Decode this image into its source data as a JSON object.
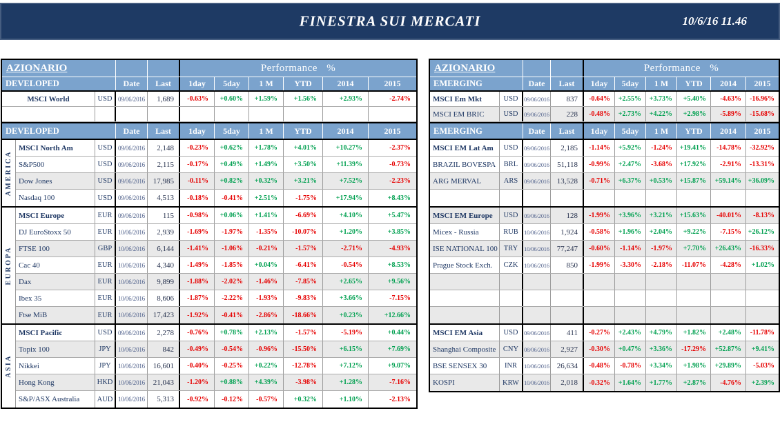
{
  "colors": {
    "banner_bg": "#1E3A64",
    "header_bg": "#7BA3CD",
    "navy_text": "#1F3864",
    "date_text": "#51628C",
    "last_text": "#28334F",
    "positive": "#00A050",
    "negative": "#E60000",
    "row_shade": "#E9E9E9",
    "grid_line": "#9A9A9A",
    "page_bg": "#FFFFFF"
  },
  "banner": {
    "title": "FINESTRA SUI MERCATI",
    "datetime": "10/6/16 11.46"
  },
  "columns": {
    "perf_title": "Performance %",
    "date": "Date",
    "last": "Last",
    "perf": [
      "1day",
      "5day",
      "1 M",
      "YTD",
      "2014",
      "2015"
    ]
  },
  "tables": [
    {
      "id": "developed",
      "side": "left",
      "title": "AZIONARIO",
      "section_label": "DEVELOPED",
      "has_label_col": true,
      "top_rows": [
        {
          "name": "MSCI World",
          "ccy": "USD",
          "date": "09/06/2016",
          "last": "1,689",
          "perf": [
            "-0.63%",
            "+0.60%",
            "+1.59%",
            "+1.56%",
            "+2.93%",
            "-2.74%"
          ],
          "bold": true,
          "center_name": true
        },
        {
          "empty": true
        }
      ],
      "groups": [
        {
          "label": "AMERICA",
          "rows": [
            {
              "name": "MSCI North Am",
              "ccy": "USD",
              "date": "09/06/2016",
              "last": "2,148",
              "perf": [
                "-0.23%",
                "+0.62%",
                "+1.78%",
                "+4.01%",
                "+10.27%",
                "-2.37%"
              ],
              "bold": true
            },
            {
              "name": "S&P500",
              "ccy": "USD",
              "date": "09/06/2016",
              "last": "2,115",
              "perf": [
                "-0.17%",
                "+0.49%",
                "+1.49%",
                "+3.50%",
                "+11.39%",
                "-0.73%"
              ]
            },
            {
              "name": "Dow Jones",
              "ccy": "USD",
              "date": "09/06/2016",
              "last": "17,985",
              "perf": [
                "-0.11%",
                "+0.82%",
                "+0.32%",
                "+3.21%",
                "+7.52%",
                "-2.23%"
              ],
              "shade": true
            },
            {
              "name": "Nasdaq 100",
              "ccy": "USD",
              "date": "09/06/2016",
              "last": "4,513",
              "perf": [
                "-0.18%",
                "-0.41%",
                "+2.51%",
                "-1.75%",
                "+17.94%",
                "+8.43%"
              ]
            }
          ]
        },
        {
          "label": "EUROPA",
          "rows": [
            {
              "name": "MSCI Europe",
              "ccy": "EUR",
              "date": "09/06/2016",
              "last": "115",
              "perf": [
                "-0.98%",
                "+0.06%",
                "+1.41%",
                "-6.69%",
                "+4.10%",
                "+5.47%"
              ],
              "bold": true
            },
            {
              "name": "DJ EuroStoxx 50",
              "ccy": "EUR",
              "date": "10/06/2016",
              "last": "2,939",
              "perf": [
                "-1.69%",
                "-1.97%",
                "-1.35%",
                "-10.07%",
                "+1.20%",
                "+3.85%"
              ]
            },
            {
              "name": "FTSE 100",
              "ccy": "GBP",
              "date": "10/06/2016",
              "last": "6,144",
              "perf": [
                "-1.41%",
                "-1.06%",
                "-0.21%",
                "-1.57%",
                "-2.71%",
                "-4.93%"
              ],
              "shade": true
            },
            {
              "name": "Cac 40",
              "ccy": "EUR",
              "date": "10/06/2016",
              "last": "4,340",
              "perf": [
                "-1.49%",
                "-1.85%",
                "+0.04%",
                "-6.41%",
                "-0.54%",
                "+8.53%"
              ]
            },
            {
              "name": "Dax",
              "ccy": "EUR",
              "date": "10/06/2016",
              "last": "9,899",
              "perf": [
                "-1.88%",
                "-2.02%",
                "-1.46%",
                "-7.85%",
                "+2.65%",
                "+9.56%"
              ],
              "shade": true
            },
            {
              "name": "Ibex 35",
              "ccy": "EUR",
              "date": "10/06/2016",
              "last": "8,606",
              "perf": [
                "-1.87%",
                "-2.22%",
                "-1.93%",
                "-9.83%",
                "+3.66%",
                "-7.15%"
              ]
            },
            {
              "name": "Ftse MiB",
              "ccy": "EUR",
              "date": "10/06/2016",
              "last": "17,423",
              "perf": [
                "-1.92%",
                "-0.41%",
                "-2.86%",
                "-18.66%",
                "+0.23%",
                "+12.66%"
              ],
              "shade": true
            }
          ]
        },
        {
          "label": "ASIA",
          "rows": [
            {
              "name": "MSCI Pacific",
              "ccy": "USD",
              "date": "09/06/2016",
              "last": "2,278",
              "perf": [
                "-0.76%",
                "+0.78%",
                "+2.13%",
                "-1.57%",
                "-5.19%",
                "+0.44%"
              ],
              "bold": true
            },
            {
              "name": "Topix 100",
              "ccy": "JPY",
              "date": "10/06/2016",
              "last": "842",
              "perf": [
                "-0.49%",
                "-0.54%",
                "-0.96%",
                "-15.50%",
                "+6.15%",
                "+7.69%"
              ],
              "shade": true
            },
            {
              "name": "Nikkei",
              "ccy": "JPY",
              "date": "10/06/2016",
              "last": "16,601",
              "perf": [
                "-0.40%",
                "-0.25%",
                "+0.22%",
                "-12.78%",
                "+7.12%",
                "+9.07%"
              ]
            },
            {
              "name": "Hong Kong",
              "ccy": "HKD",
              "date": "10/06/2016",
              "last": "21,043",
              "perf": [
                "-1.20%",
                "+0.88%",
                "+4.39%",
                "-3.98%",
                "+1.28%",
                "-7.16%"
              ],
              "shade": true
            },
            {
              "name": "S&P/ASX Australia",
              "ccy": "AUD",
              "date": "10/06/2016",
              "last": "5,313",
              "perf": [
                "-0.92%",
                "-0.12%",
                "-0.57%",
                "+0.32%",
                "+1.10%",
                "-2.13%"
              ]
            }
          ]
        }
      ]
    },
    {
      "id": "emerging",
      "side": "right",
      "title": "AZIONARIO",
      "section_label": "EMERGING",
      "has_label_col": false,
      "top_rows": [
        {
          "name": "MSCI Em Mkt",
          "ccy": "USD",
          "date": "09/06/2016",
          "last": "837",
          "perf": [
            "-0.64%",
            "+2.55%",
            "+3.73%",
            "+5.40%",
            "-4.63%",
            "-16.96%"
          ],
          "bold": true
        },
        {
          "name": "MSCI EM BRIC",
          "ccy": "USD",
          "date": "09/06/2016",
          "last": "228",
          "perf": [
            "-0.48%",
            "+2.73%",
            "+4.22%",
            "+2.98%",
            "-5.89%",
            "-15.68%"
          ],
          "shade": true
        }
      ],
      "groups": [
        {
          "label": "",
          "rows": [
            {
              "name": "MSCI EM Lat Am",
              "ccy": "USD",
              "date": "09/06/2016",
              "last": "2,185",
              "perf": [
                "-1.14%",
                "+5.92%",
                "-1.24%",
                "+19.41%",
                "-14.78%",
                "-32.92%"
              ],
              "bold": true
            },
            {
              "name": "BRAZIL BOVESPA",
              "ccy": "BRL",
              "date": "09/06/2016",
              "last": "51,118",
              "perf": [
                "-0.99%",
                "+2.47%",
                "-3.68%",
                "+17.92%",
                "-2.91%",
                "-13.31%"
              ]
            },
            {
              "name": "ARG MERVAL",
              "ccy": "ARS",
              "date": "09/06/2016",
              "last": "13,528",
              "perf": [
                "-0.71%",
                "+6.37%",
                "+0.53%",
                "+15.87%",
                "+59.14%",
                "+36.09%"
              ],
              "shade": true
            },
            {
              "empty": true
            }
          ]
        },
        {
          "label": "",
          "rows": [
            {
              "name": "MSCI EM Europe",
              "ccy": "USD",
              "date": "09/06/2016",
              "last": "128",
              "perf": [
                "-1.99%",
                "+3.96%",
                "+3.21%",
                "+15.63%",
                "-40.01%",
                "-8.13%"
              ],
              "bold": true,
              "shade": true
            },
            {
              "name": "Micex - Russia",
              "ccy": "RUB",
              "date": "10/06/2016",
              "last": "1,924",
              "perf": [
                "-0.58%",
                "+1.96%",
                "+2.04%",
                "+9.22%",
                "-7.15%",
                "+26.12%"
              ]
            },
            {
              "name": "ISE NATIONAL 100",
              "ccy": "TRY",
              "date": "10/06/2016",
              "last": "77,247",
              "perf": [
                "-0.60%",
                "-1.14%",
                "-1.97%",
                "+7.70%",
                "+26.43%",
                "-16.33%"
              ],
              "shade": true
            },
            {
              "name": "Prague Stock Exch.",
              "ccy": "CZK",
              "date": "10/06/2016",
              "last": "850",
              "perf": [
                "-1.99%",
                "-3.30%",
                "-2.18%",
                "-11.07%",
                "-4.28%",
                "+1.02%"
              ]
            },
            {
              "empty": true,
              "shade": true
            },
            {
              "empty": true
            },
            {
              "empty": true,
              "shade": true
            }
          ]
        },
        {
          "label": "",
          "rows": [
            {
              "name": "MSCI EM Asia",
              "ccy": "USD",
              "date": "09/06/2016",
              "last": "411",
              "perf": [
                "-0.27%",
                "+2.43%",
                "+4.79%",
                "+1.82%",
                "+2.48%",
                "-11.78%"
              ],
              "bold": true
            },
            {
              "name": "Shanghai Composite",
              "ccy": "CNY",
              "date": "08/06/2016",
              "last": "2,927",
              "perf": [
                "-0.30%",
                "+0.47%",
                "+3.36%",
                "-17.29%",
                "+52.87%",
                "+9.41%"
              ],
              "shade": true
            },
            {
              "name": "BSE SENSEX 30",
              "ccy": "INR",
              "date": "10/06/2016",
              "last": "26,634",
              "perf": [
                "-0.48%",
                "-0.78%",
                "+3.34%",
                "+1.98%",
                "+29.89%",
                "-5.03%"
              ]
            },
            {
              "name": "KOSPI",
              "ccy": "KRW",
              "date": "10/06/2016",
              "last": "2,018",
              "perf": [
                "-0.32%",
                "+1.64%",
                "+1.77%",
                "+2.87%",
                "-4.76%",
                "+2.39%"
              ],
              "shade": true
            }
          ]
        }
      ]
    }
  ]
}
